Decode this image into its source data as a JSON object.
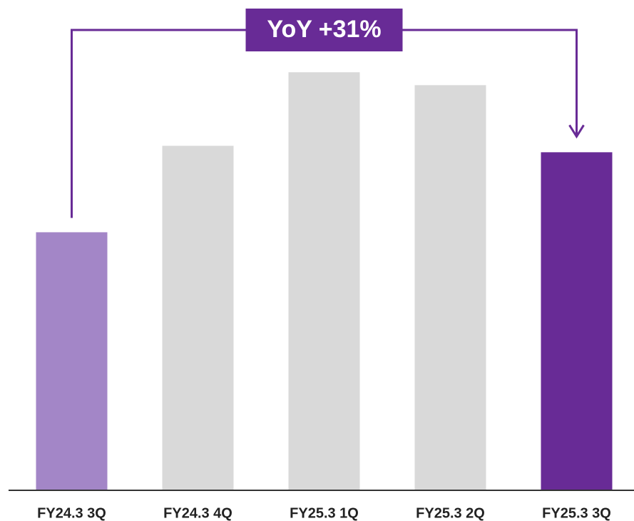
{
  "chart_data": {
    "type": "bar",
    "annotation": "YoY +31%",
    "categories": [
      "FY24.3 3Q",
      "FY24.3 4Q",
      "FY25.3 1Q",
      "FY25.3 2Q",
      "FY25.3 3Q"
    ],
    "values": [
      100,
      133.5,
      162,
      157,
      131
    ],
    "colors": [
      "#a386c7",
      "#d9d9d9",
      "#d9d9d9",
      "#d9d9d9",
      "#682b96"
    ],
    "annotation_color": "#682b96",
    "ylim": [
      0,
      190
    ]
  }
}
